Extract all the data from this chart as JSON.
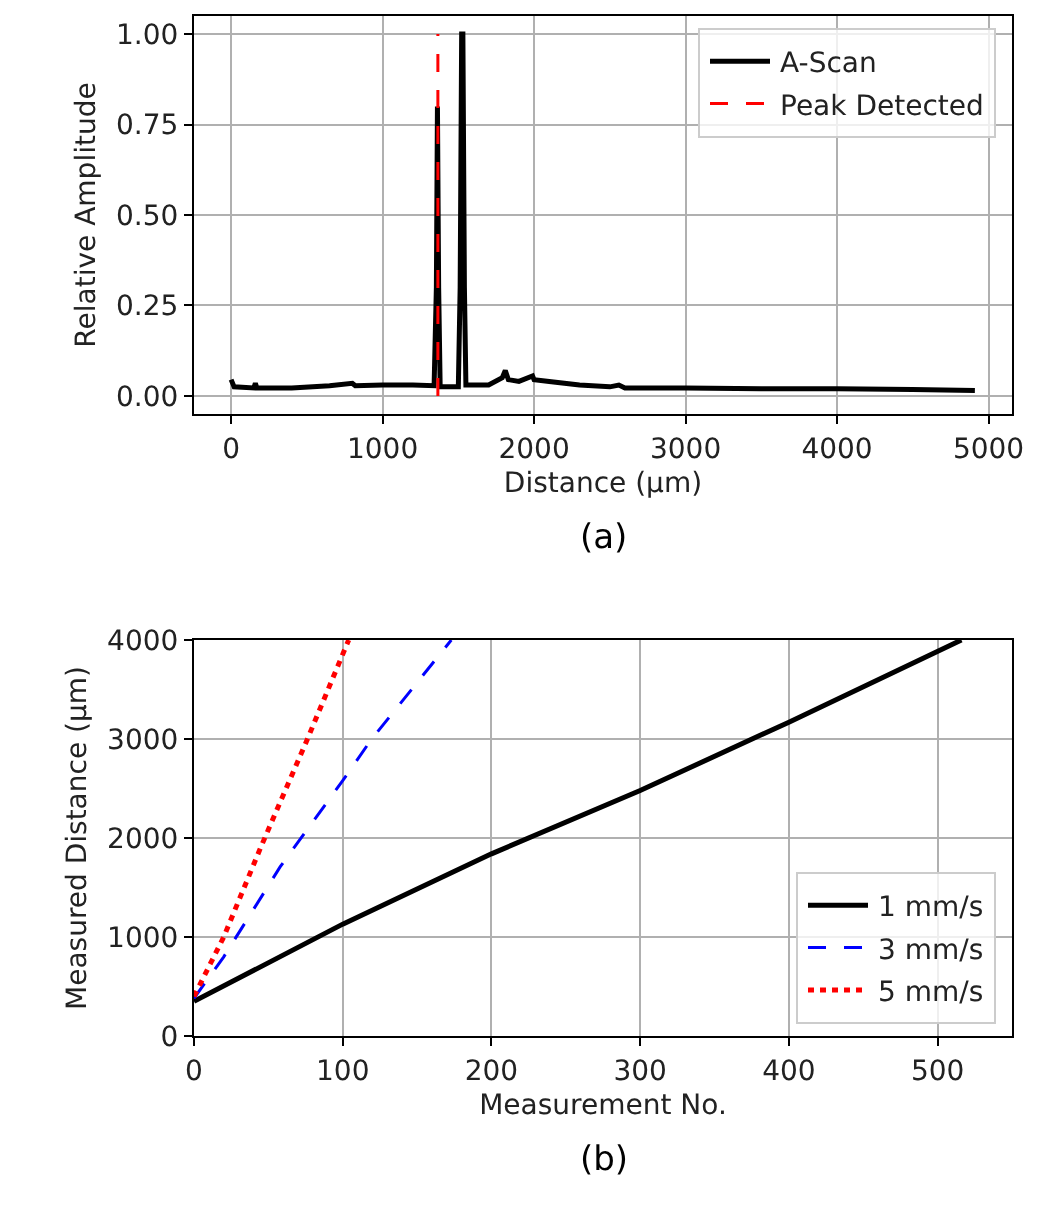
{
  "chart_data": [
    {
      "type": "line",
      "xlabel": "Distance (µm)",
      "ylabel": "Relative Amplitude",
      "annotations": [
        "(a)"
      ],
      "xlim": [
        -245,
        5155
      ],
      "xticks": [
        0,
        1000,
        2000,
        3000,
        4000,
        5000
      ],
      "ylim": [
        -0.05,
        1.05
      ],
      "yticks": [
        {
          "value": 0,
          "label": "0.00"
        },
        {
          "value": 0.25,
          "label": "0.25"
        },
        {
          "value": 0.5,
          "label": "0.50"
        },
        {
          "value": 0.75,
          "label": "0.75"
        },
        {
          "value": 1,
          "label": "1.00"
        }
      ],
      "grid": true,
      "legend": "top right",
      "series": [
        {
          "name": "A-Scan",
          "color": "#000000",
          "line_style": "solid",
          "x": [
            0,
            20,
            150,
            160,
            170,
            400,
            650,
            800,
            820,
            1000,
            1200,
            1340,
            1355,
            1362,
            1370,
            1380,
            1500,
            1512,
            1522,
            1530,
            1540,
            1550,
            1700,
            1790,
            1810,
            1830,
            1900,
            1990,
            2000,
            2100,
            2200,
            2300,
            2500,
            2560,
            2600,
            3000,
            3500,
            4000,
            4500,
            4910
          ],
          "values": [
            0.045,
            0.025,
            0.022,
            0.035,
            0.022,
            0.022,
            0.028,
            0.035,
            0.028,
            0.03,
            0.03,
            0.028,
            0.3,
            0.8,
            0.3,
            0.025,
            0.025,
            0.3,
            1.0,
            1.0,
            0.3,
            0.03,
            0.03,
            0.05,
            0.07,
            0.045,
            0.04,
            0.055,
            0.045,
            0.04,
            0.035,
            0.03,
            0.025,
            0.03,
            0.022,
            0.022,
            0.02,
            0.02,
            0.018,
            0.015
          ]
        },
        {
          "name": "Peak Detected",
          "color": "#ff0000",
          "line_style": "dashed",
          "x": [
            1365,
            1365
          ],
          "values": [
            0,
            1
          ]
        }
      ]
    },
    {
      "type": "line",
      "xlabel": "Measurement No.",
      "ylabel": "Measured Distance (µm)",
      "annotations": [
        "(b)"
      ],
      "xlim": [
        0,
        550
      ],
      "xticks": [
        0,
        100,
        200,
        300,
        400,
        500
      ],
      "ylim": [
        0,
        4000
      ],
      "yticks": [
        0,
        1000,
        2000,
        3000,
        4000
      ],
      "grid": true,
      "legend": "bottom right",
      "series": [
        {
          "name": "1 mm/s",
          "color": "#000000",
          "line_style": "solid",
          "x": [
            0,
            100,
            200,
            300,
            400,
            516
          ],
          "values": [
            350,
            1130,
            1840,
            2480,
            3170,
            4000
          ]
        },
        {
          "name": "3 mm/s",
          "color": "#0000ff",
          "line_style": "dashed",
          "x": [
            0,
            20,
            58,
            100,
            119,
            173
          ],
          "values": [
            380,
            800,
            1710,
            2580,
            2990,
            4000
          ]
        },
        {
          "name": "5 mm/s",
          "color": "#ff0000",
          "line_style": "dotted",
          "x": [
            0,
            20,
            45,
            76,
            104
          ],
          "values": [
            400,
            1000,
            1910,
            2990,
            4000
          ]
        }
      ]
    }
  ]
}
